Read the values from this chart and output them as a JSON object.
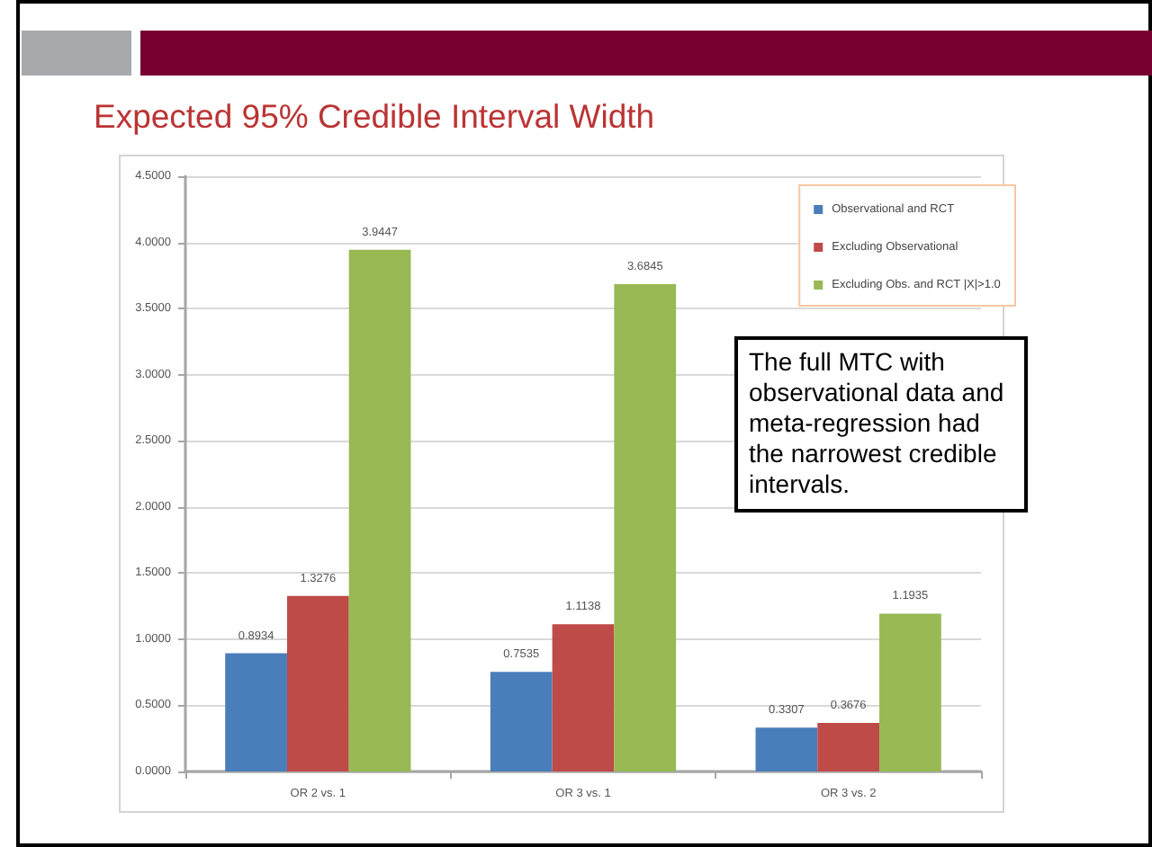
{
  "chart_data": {
    "type": "bar",
    "title": "Expected 95% Credible Interval Width",
    "categories": [
      "OR 2 vs. 1",
      "OR 3 vs. 1",
      "OR 3 vs. 2"
    ],
    "series": [
      {
        "name": "Observational and RCT",
        "color": "#4a7ebb",
        "values": [
          0.8934,
          0.7535,
          0.3307
        ]
      },
      {
        "name": "Excluding Observational",
        "color": "#be4b48",
        "values": [
          1.3276,
          1.1138,
          0.3676
        ]
      },
      {
        "name": "Excluding Obs. and RCT |X|>1.0",
        "color": "#98b954",
        "values": [
          3.9447,
          3.6845,
          1.1935
        ]
      }
    ],
    "ylim": [
      0,
      4.5
    ],
    "yticks": [
      {
        "value": 0,
        "label": "0.0000"
      },
      {
        "value": 0.5,
        "label": "0.5000"
      },
      {
        "value": 1,
        "label": "1.0000"
      },
      {
        "value": 1.5,
        "label": "1.5000"
      },
      {
        "value": 2,
        "label": "2.0000"
      },
      {
        "value": 2.5,
        "label": "2.5000"
      },
      {
        "value": 3,
        "label": "3.0000"
      },
      {
        "value": 3.5,
        "label": "3.5000"
      },
      {
        "value": 4,
        "label": "4.0000"
      },
      {
        "value": 4.5,
        "label": "4.5000"
      }
    ],
    "grid": "y",
    "legend": "top right",
    "data_labels": true,
    "annotations": [
      "The full MTC with observational data and meta-regression had the narrowest credible intervals."
    ]
  }
}
